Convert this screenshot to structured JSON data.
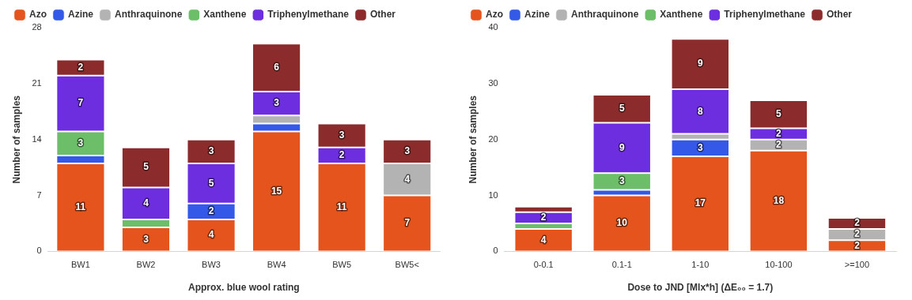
{
  "chart_data": [
    {
      "type": "bar",
      "stacked": true,
      "data_labels": true,
      "legend": "top-left",
      "grid": false,
      "x_label": "Approx. blue wool rating",
      "y_label": "Number of samples",
      "categories": [
        "BW1",
        "BW2",
        "BW3",
        "BW4",
        "BW5",
        "BW5<"
      ],
      "ylim": [
        0,
        28
      ],
      "yticks": [
        0,
        7,
        14,
        21,
        28
      ],
      "series": [
        {
          "name": "Azo",
          "color": "#e6541e",
          "values": [
            11,
            3,
            4,
            15,
            11,
            7
          ]
        },
        {
          "name": "Azine",
          "color": "#3458e8",
          "values": [
            1,
            0,
            2,
            1,
            0,
            0
          ]
        },
        {
          "name": "Anthraquinone",
          "color": "#b3b3b3",
          "values": [
            0,
            0,
            0,
            1,
            0,
            4
          ]
        },
        {
          "name": "Xanthene",
          "color": "#6cbf68",
          "values": [
            3,
            1,
            0,
            0,
            0,
            0
          ]
        },
        {
          "name": "Triphenylmethane",
          "color": "#6d2ee0",
          "values": [
            7,
            4,
            5,
            3,
            2,
            0
          ]
        },
        {
          "name": "Other",
          "color": "#8b2b2b",
          "values": [
            2,
            5,
            3,
            6,
            3,
            3
          ]
        }
      ]
    },
    {
      "type": "bar",
      "stacked": true,
      "data_labels": true,
      "legend": "top-left",
      "grid": false,
      "x_label": "Dose to JND [Mlx*h] (ΔE₀₀ = 1.7)",
      "y_label": "Number of samples",
      "categories": [
        "0-0.1",
        "0.1-1",
        "1-10",
        "10-100",
        ">=100"
      ],
      "ylim": [
        0,
        40
      ],
      "yticks": [
        0,
        10,
        20,
        30,
        40
      ],
      "series": [
        {
          "name": "Azo",
          "color": "#e6541e",
          "values": [
            4,
            10,
            17,
            18,
            2
          ]
        },
        {
          "name": "Azine",
          "color": "#3458e8",
          "values": [
            0,
            1,
            3,
            0,
            0
          ]
        },
        {
          "name": "Anthraquinone",
          "color": "#b3b3b3",
          "values": [
            0,
            0,
            1,
            2,
            2
          ]
        },
        {
          "name": "Xanthene",
          "color": "#6cbf68",
          "values": [
            1,
            3,
            0,
            0,
            0
          ]
        },
        {
          "name": "Triphenylmethane",
          "color": "#6d2ee0",
          "values": [
            2,
            9,
            8,
            2,
            0
          ]
        },
        {
          "name": "Other",
          "color": "#8b2b2b",
          "values": [
            1,
            5,
            9,
            5,
            2
          ]
        }
      ]
    }
  ]
}
